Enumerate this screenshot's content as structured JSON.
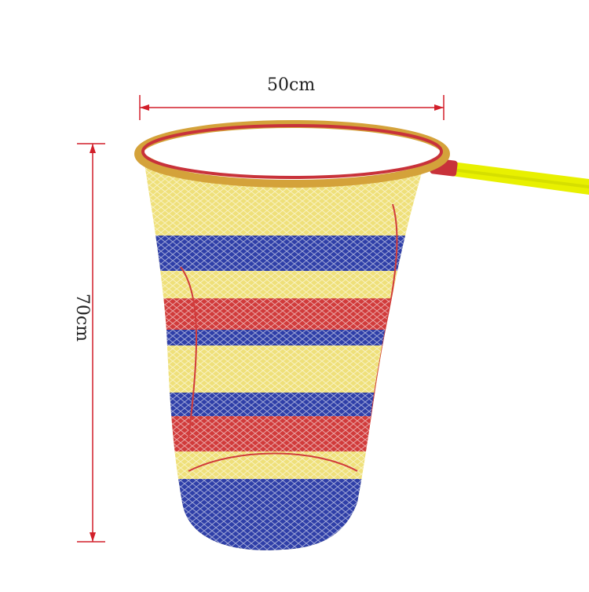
{
  "dimensions": {
    "width_label": "50cm",
    "height_label": "70cm"
  },
  "colors": {
    "background": "#ffffff",
    "dimension_line": "#d21f2a",
    "rim_outer": "#d4a23a",
    "rim_inner": "#c8323a",
    "handle": "#e8f000",
    "mesh_yellow": "#efe07a",
    "mesh_blue": "#2f3fa8",
    "mesh_red": "#d13b3b"
  },
  "subject": {
    "icon": "fishing-landing-net-icon"
  }
}
